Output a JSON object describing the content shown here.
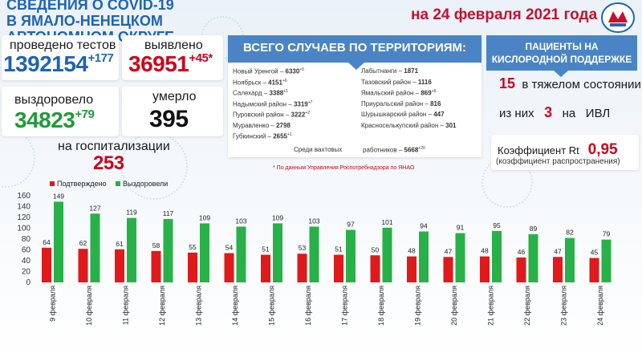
{
  "header": {
    "title_line1": "СВЕДЕНИЯ О COVID-19",
    "title_line2": "В ЯМАЛО-НЕНЕЦКОМ АВТОНОМНОМ ОКРУГЕ",
    "date": "на 24 февраля 2021 года"
  },
  "stats": {
    "tests_label": "проведено тестов",
    "tests_value": "1392154",
    "tests_delta": "+177",
    "detected_label": "выявлено",
    "detected_value": "36951",
    "detected_delta": "+45*",
    "recovered_label": "выздоровело",
    "recovered_value": "34823",
    "recovered_delta": "+79",
    "died_label": "умерло",
    "died_value": "395",
    "hospital_label": "на госпитализации",
    "hospital_value": "253"
  },
  "territories": {
    "title": "ВСЕГО СЛУЧАЕВ ПО ТЕРРИТОРИЯМ:",
    "left": [
      {
        "name": "Новый Уренгой – ",
        "value": "6330",
        "delta": "+5"
      },
      {
        "name": "Ноябрьск – ",
        "value": "4151",
        "delta": "+6"
      },
      {
        "name": "Салехард – ",
        "value": "3388",
        "delta": "+1"
      },
      {
        "name": "Надымский район – ",
        "value": "3319",
        "delta": "+7"
      },
      {
        "name": "Пуровский район – ",
        "value": "3222",
        "delta": "+2"
      },
      {
        "name": "Муравленко – ",
        "value": "2798",
        "delta": ""
      },
      {
        "name": "Губкинский – ",
        "value": "2655",
        "delta": "+1"
      }
    ],
    "right": [
      {
        "name": "Лабытнанги – ",
        "value": "1871",
        "delta": ""
      },
      {
        "name": "Тазовский район – ",
        "value": "1116",
        "delta": ""
      },
      {
        "name": "Ямальский район – ",
        "value": "869",
        "delta": "+6"
      },
      {
        "name": "Приуральский район – ",
        "value": "816",
        "delta": ""
      },
      {
        "name": "Шурышкарский район – ",
        "value": "447",
        "delta": ""
      },
      {
        "name": "Красноселькупский район – ",
        "value": "301",
        "delta": ""
      }
    ],
    "shift_left": "Среди вахтовых",
    "shift_right": "работников – ",
    "shift_value": "5668",
    "shift_delta": "+20",
    "footnote": "* По данным Управления  Роспотребнадзора по ЯНАО"
  },
  "patients": {
    "title": "ПАЦИЕНТЫ НА КИСЛОРОДНОЙ ПОДДЕРЖКЕ",
    "severe_num": "15",
    "severe_text": "в тяжелом состоянии,",
    "ivl_pre": "из них",
    "ivl_num": "3",
    "ivl_mid": "на",
    "ivl_text": "ИВЛ",
    "rt_label": "Коэффициент Rt",
    "rt_value": "0,95",
    "rt_sub": "(коэффициент распространения)"
  },
  "colors": {
    "confirmed": "#e0191b",
    "recovered": "#28b148",
    "header_blue": "#1e64b4",
    "accent_red": "#c8102e"
  },
  "chart_data": {
    "type": "bar",
    "categories": [
      "9 февраля",
      "10 февраля",
      "11 февраля",
      "12 февраля",
      "13 февраля",
      "14 февраля",
      "15 февраля",
      "16 февраля",
      "17 февраля",
      "18 февраля",
      "19 февраля",
      "20 февраля",
      "21 февраля",
      "22 февраля",
      "23 февраля",
      "24 февраля"
    ],
    "series": [
      {
        "name": "Подтверждено",
        "values": [
          64,
          62,
          61,
          58,
          55,
          54,
          51,
          53,
          51,
          50,
          48,
          47,
          48,
          46,
          47,
          45
        ]
      },
      {
        "name": "Выздоровели",
        "values": [
          149,
          127,
          119,
          117,
          109,
          103,
          109,
          103,
          97,
          101,
          94,
          91,
          95,
          89,
          82,
          79
        ]
      }
    ],
    "yticks": [
      0,
      20,
      40,
      60,
      80,
      100,
      120,
      140,
      160
    ],
    "ylim": [
      0,
      160
    ],
    "grid": false,
    "legend_position": "top-left"
  }
}
